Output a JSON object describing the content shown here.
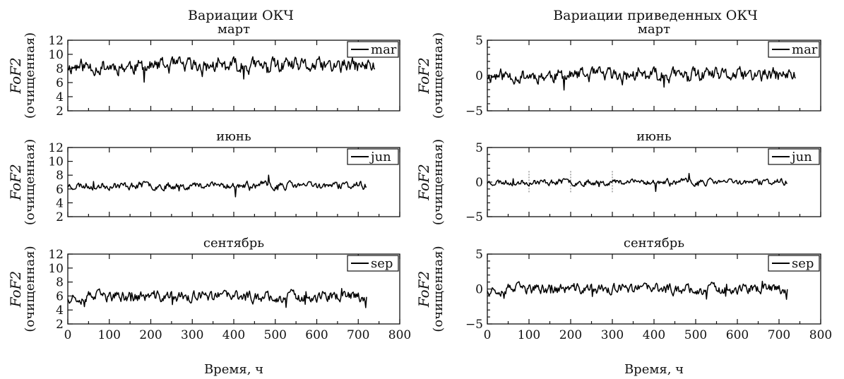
{
  "columns": [
    "Вариации ОКЧ",
    "Вариации приведенных ОКЧ"
  ],
  "chart_data": [
    {
      "type": "line",
      "column": "Вариации ОКЧ",
      "title": "март",
      "legend": "mar",
      "xlabel": "",
      "ylabel": "FoF2 (очищенная)",
      "xlim": [
        0,
        800
      ],
      "ylim": [
        2,
        12
      ],
      "yticks": [
        2,
        4,
        6,
        8,
        10,
        12
      ],
      "xticks": [
        0,
        100,
        200,
        300,
        400,
        500,
        600,
        700,
        800
      ],
      "x": [
        0,
        740
      ],
      "mean": 8.3,
      "amp": 1.2,
      "seed": 11
    },
    {
      "type": "line",
      "column": "Вариации ОКЧ",
      "title": "июнь",
      "legend": "jun",
      "xlabel": "",
      "ylabel": "FoF2 (очищенная)",
      "xlim": [
        0,
        800
      ],
      "ylim": [
        2,
        12
      ],
      "yticks": [
        2,
        4,
        6,
        8,
        10,
        12
      ],
      "xticks": [
        0,
        100,
        200,
        300,
        400,
        500,
        600,
        700,
        800
      ],
      "x": [
        0,
        720
      ],
      "mean": 6.5,
      "amp": 0.6,
      "seed": 23
    },
    {
      "type": "line",
      "column": "Вариации ОКЧ",
      "title": "сентябрь",
      "legend": "sep",
      "xlabel": "Время, ч",
      "ylabel": "FoF2 (очищенная)",
      "xlim": [
        0,
        800
      ],
      "ylim": [
        2,
        12
      ],
      "yticks": [
        2,
        4,
        6,
        8,
        10,
        12
      ],
      "xticks": [
        0,
        100,
        200,
        300,
        400,
        500,
        600,
        700,
        800
      ],
      "x": [
        0,
        720
      ],
      "mean": 5.9,
      "amp": 0.9,
      "seed": 37
    },
    {
      "type": "line",
      "column": "Вариации приведенных ОКЧ",
      "title": "март",
      "legend": "mar",
      "xlabel": "",
      "ylabel": "FoF2 (очищенная)",
      "xlim": [
        0,
        800
      ],
      "ylim": [
        -5,
        5
      ],
      "yticks": [
        -5,
        0,
        5
      ],
      "xticks": [
        0,
        100,
        200,
        300,
        400,
        500,
        600,
        700,
        800
      ],
      "x": [
        0,
        740
      ],
      "mean": 0,
      "amp": 1.1,
      "seed": 11
    },
    {
      "type": "line",
      "column": "Вариации приведенных ОКЧ",
      "title": "июнь",
      "legend": "jun",
      "xlabel": "",
      "ylabel": "FoF2 (очищенная)",
      "xlim": [
        0,
        800
      ],
      "ylim": [
        -5,
        5
      ],
      "yticks": [
        -5,
        0,
        5
      ],
      "xticks": [
        0,
        100,
        200,
        300,
        400,
        500,
        600,
        700,
        800
      ],
      "x": [
        0,
        720
      ],
      "mean": 0,
      "amp": 0.5,
      "seed": 23
    },
    {
      "type": "line",
      "column": "Вариации приведенных ОКЧ",
      "title": "сентябрь",
      "legend": "sep",
      "xlabel": "Время, ч",
      "ylabel": "FoF2 (очищенная)",
      "xlim": [
        0,
        800
      ],
      "ylim": [
        -5,
        5
      ],
      "yticks": [
        -5,
        0,
        5
      ],
      "xticks": [
        0,
        100,
        200,
        300,
        400,
        500,
        600,
        700,
        800
      ],
      "x": [
        0,
        720
      ],
      "mean": 0,
      "amp": 0.85,
      "seed": 37
    }
  ]
}
